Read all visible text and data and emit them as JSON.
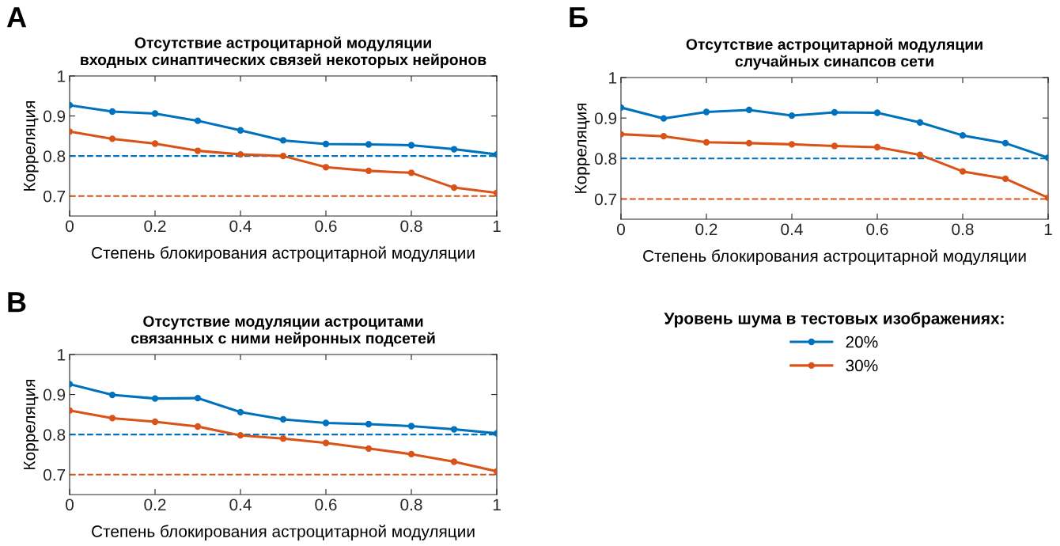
{
  "chart_data": [
    {
      "type": "line",
      "title": "Отсутствие астроцитарной модуляции\nвходных синаптических связей некоторых нейронов",
      "xlabel": "Степень блокирования астроцитарной модуляции",
      "ylabel": "Корреляция",
      "x": [
        0,
        0.1,
        0.2,
        0.3,
        0.4,
        0.5,
        0.6,
        0.7,
        0.8,
        0.9,
        1
      ],
      "series": [
        {
          "color": "#0072bd",
          "values": [
            0.927,
            0.911,
            0.906,
            0.888,
            0.864,
            0.839,
            0.83,
            0.829,
            0.827,
            0.817,
            0.804
          ]
        },
        {
          "color": "#d95319",
          "values": [
            0.861,
            0.843,
            0.831,
            0.813,
            0.804,
            0.8,
            0.772,
            0.763,
            0.758,
            0.721,
            0.708
          ]
        }
      ],
      "ref_lines": [
        {
          "axis": "y",
          "value": 0.8,
          "color": "#0072bd",
          "line_style": "dashed"
        },
        {
          "axis": "y",
          "value": 0.7,
          "color": "#d95319",
          "line_style": "dashed"
        }
      ],
      "xlim": [
        0,
        1
      ],
      "xticks": [
        0,
        0.2,
        0.4,
        0.6,
        0.8,
        1
      ],
      "ylim": [
        0.65,
        1
      ],
      "yticks": [
        0.7,
        0.8,
        0.9,
        1
      ],
      "annotations": [
        "A"
      ],
      "grid": false,
      "legend": false,
      "marker": "circle",
      "line_style": "solid"
    },
    {
      "type": "line",
      "title": "Отсутствие астроцитарной модуляции\nслучайных синапсов сети",
      "xlabel": "Степень блокирования астроцитарной модуляции",
      "ylabel": "Корреляция",
      "x": [
        0,
        0.1,
        0.2,
        0.3,
        0.4,
        0.5,
        0.6,
        0.7,
        0.8,
        0.9,
        1
      ],
      "series": [
        {
          "name": "20%",
          "color": "#0072bd",
          "values": [
            0.926,
            0.899,
            0.915,
            0.92,
            0.906,
            0.914,
            0.913,
            0.889,
            0.857,
            0.838,
            0.802
          ]
        },
        {
          "name": "30%",
          "color": "#d95319",
          "values": [
            0.86,
            0.855,
            0.84,
            0.838,
            0.835,
            0.831,
            0.828,
            0.809,
            0.768,
            0.75,
            0.703
          ]
        }
      ],
      "ref_lines": [
        {
          "axis": "y",
          "value": 0.8,
          "color": "#0072bd",
          "line_style": "dashed"
        },
        {
          "axis": "y",
          "value": 0.7,
          "color": "#d95319",
          "line_style": "dashed"
        }
      ],
      "xlim": [
        0,
        1
      ],
      "xticks": [
        0,
        0.2,
        0.4,
        0.6,
        0.8,
        1
      ],
      "ylim": [
        0.65,
        1
      ],
      "yticks": [
        0.7,
        0.8,
        0.9,
        1
      ],
      "annotations": [
        "Б"
      ],
      "grid": false,
      "legend": "bottom",
      "legend_title": "Уровень шума в тестовых изображениях:",
      "marker": "circle",
      "line_style": "solid"
    },
    {
      "type": "line",
      "title": "Отсутствие модуляции астроцитами\nсвязанных с ними нейронных подсетей",
      "xlabel": "Степень блокирования астроцитарной модуляции",
      "ylabel": "Корреляция",
      "x": [
        0,
        0.1,
        0.2,
        0.3,
        0.4,
        0.5,
        0.6,
        0.7,
        0.8,
        0.9,
        1
      ],
      "series": [
        {
          "color": "#0072bd",
          "values": [
            0.926,
            0.899,
            0.89,
            0.891,
            0.856,
            0.838,
            0.829,
            0.826,
            0.821,
            0.813,
            0.803
          ]
        },
        {
          "color": "#d95319",
          "values": [
            0.86,
            0.841,
            0.832,
            0.82,
            0.798,
            0.79,
            0.779,
            0.765,
            0.751,
            0.732,
            0.708
          ]
        }
      ],
      "ref_lines": [
        {
          "axis": "y",
          "value": 0.8,
          "color": "#0072bd",
          "line_style": "dashed"
        },
        {
          "axis": "y",
          "value": 0.7,
          "color": "#d95319",
          "line_style": "dashed"
        }
      ],
      "xlim": [
        0,
        1
      ],
      "xticks": [
        0,
        0.2,
        0.4,
        0.6,
        0.8,
        1
      ],
      "ylim": [
        0.65,
        1
      ],
      "yticks": [
        0.7,
        0.8,
        0.9,
        1
      ],
      "annotations": [
        "В"
      ],
      "grid": false,
      "legend": false,
      "marker": "circle",
      "line_style": "solid"
    }
  ]
}
